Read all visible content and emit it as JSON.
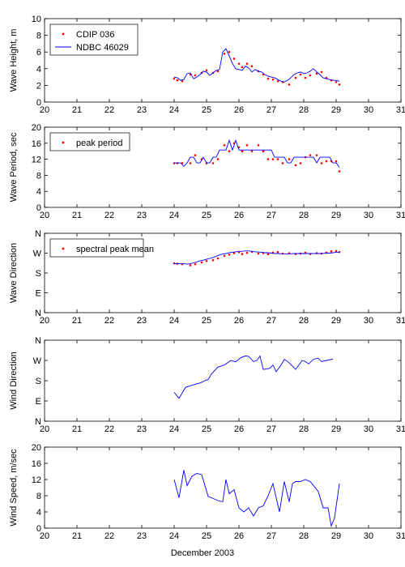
{
  "xaxis_label": "December 2003",
  "colors": {
    "buoy": "#ff0000",
    "model": "#0000ff",
    "axis": "#000000"
  },
  "chart_data": [
    {
      "type": "line",
      "ylabel": "Wave Height, m",
      "xlim": [
        20,
        31
      ],
      "ylim": [
        0,
        10
      ],
      "xticks": [
        "20",
        "21",
        "22",
        "23",
        "24",
        "25",
        "26",
        "27",
        "28",
        "29",
        "30",
        "31"
      ],
      "yticks": [
        "0",
        "2",
        "4",
        "6",
        "8",
        "10"
      ],
      "legend": {
        "placement": "top-left"
      },
      "series": [
        {
          "name": "CDIP 036",
          "style": "dots",
          "color": "#ff0000",
          "x": [
            24.0,
            24.1,
            24.25,
            24.5,
            24.65,
            24.85,
            25.0,
            25.2,
            25.35,
            25.55,
            25.7,
            25.85,
            26.0,
            26.1,
            26.25,
            26.4,
            26.6,
            26.75,
            26.9,
            27.05,
            27.2,
            27.35,
            27.55,
            27.75,
            27.9,
            28.05,
            28.2,
            28.4,
            28.55,
            28.7,
            28.85,
            29.0,
            29.1
          ],
          "y": [
            2.8,
            2.6,
            2.5,
            3.3,
            3.2,
            3.5,
            3.8,
            3.5,
            3.7,
            5.8,
            6.0,
            5.2,
            4.6,
            4.2,
            4.6,
            4.3,
            3.7,
            3.3,
            2.8,
            2.7,
            2.5,
            2.4,
            2.1,
            2.9,
            3.3,
            2.9,
            3.2,
            3.4,
            3.6,
            2.9,
            2.6,
            2.4,
            2.1
          ]
        },
        {
          "name": "NDBC 46029",
          "style": "line",
          "color": "#0000ff",
          "x": [
            24.0,
            24.1,
            24.2,
            24.3,
            24.4,
            24.5,
            24.6,
            24.7,
            24.8,
            24.9,
            25.0,
            25.1,
            25.2,
            25.3,
            25.4,
            25.5,
            25.6,
            25.7,
            25.8,
            25.9,
            26.0,
            26.1,
            26.2,
            26.3,
            26.4,
            26.5,
            26.6,
            26.7,
            26.8,
            26.9,
            27.0,
            27.1,
            27.2,
            27.3,
            27.4,
            27.5,
            27.6,
            27.7,
            27.8,
            27.9,
            28.0,
            28.1,
            28.2,
            28.3,
            28.4,
            28.5,
            28.6,
            28.7,
            28.8,
            28.9,
            29.0,
            29.1
          ],
          "y": [
            3.0,
            2.9,
            2.6,
            2.7,
            3.4,
            3.5,
            2.8,
            3.0,
            3.3,
            3.7,
            3.6,
            3.2,
            3.5,
            3.8,
            3.9,
            6.0,
            6.4,
            5.5,
            4.6,
            4.0,
            3.9,
            3.8,
            4.3,
            4.1,
            3.6,
            3.9,
            3.7,
            3.6,
            3.3,
            3.1,
            3.0,
            2.9,
            2.7,
            2.5,
            2.4,
            2.6,
            2.9,
            3.3,
            3.5,
            3.6,
            3.4,
            3.5,
            3.7,
            4.0,
            3.6,
            3.3,
            2.9,
            2.8,
            2.7,
            2.6,
            2.6,
            2.5
          ]
        }
      ]
    },
    {
      "type": "line",
      "ylabel": "Wave Period, sec",
      "xlim": [
        20,
        31
      ],
      "ylim": [
        0,
        20
      ],
      "xticks": [
        "20",
        "21",
        "22",
        "23",
        "24",
        "25",
        "26",
        "27",
        "28",
        "29",
        "30",
        "31"
      ],
      "yticks": [
        "0",
        "4",
        "8",
        "12",
        "16",
        "20"
      ],
      "legend": {
        "placement": "top-left"
      },
      "series": [
        {
          "name": "peak period",
          "style": "dots",
          "color": "#ff0000",
          "x": [
            24.0,
            24.1,
            24.25,
            24.5,
            24.65,
            24.85,
            25.0,
            25.2,
            25.35,
            25.55,
            25.7,
            25.85,
            26.0,
            26.1,
            26.25,
            26.4,
            26.6,
            26.75,
            26.9,
            27.05,
            27.2,
            27.35,
            27.55,
            27.75,
            27.9,
            28.05,
            28.2,
            28.4,
            28.55,
            28.7,
            28.85,
            29.0,
            29.1
          ],
          "y": [
            11,
            11,
            11,
            11,
            13,
            12,
            11,
            11,
            12,
            15.5,
            14,
            16,
            15,
            14,
            15.5,
            14,
            15.5,
            14,
            12,
            12,
            12,
            11,
            12,
            10.5,
            11,
            12.5,
            13,
            13,
            11,
            11.5,
            11.5,
            11.5,
            9
          ],
          "note": ""
        },
        {
          "name": "",
          "style": "line",
          "color": "#0000ff",
          "x": [
            24.0,
            24.1,
            24.2,
            24.3,
            24.4,
            24.5,
            24.6,
            24.7,
            24.8,
            24.9,
            25.0,
            25.1,
            25.2,
            25.3,
            25.4,
            25.5,
            25.6,
            25.7,
            25.8,
            25.9,
            26.0,
            26.1,
            26.2,
            26.3,
            26.4,
            26.5,
            26.6,
            26.7,
            26.8,
            26.9,
            27.0,
            27.1,
            27.2,
            27.3,
            27.4,
            27.5,
            27.6,
            27.7,
            27.8,
            27.9,
            28.0,
            28.1,
            28.2,
            28.3,
            28.4,
            28.5,
            28.6,
            28.7,
            28.8,
            28.9,
            29.0,
            29.1
          ],
          "y": [
            11.1,
            11.1,
            11.1,
            10.2,
            11.1,
            12.5,
            12.5,
            11.1,
            11.1,
            12.5,
            11.1,
            11.1,
            12.5,
            12.5,
            14.3,
            14.3,
            14.3,
            16.7,
            14.3,
            16.7,
            14.3,
            14.3,
            14.3,
            14.3,
            14.3,
            14.3,
            14.3,
            14.3,
            14.3,
            14.3,
            14.3,
            12.5,
            12.5,
            12.5,
            12.5,
            11.1,
            11.1,
            12.5,
            12.5,
            12.5,
            12.5,
            12.5,
            12.5,
            12.5,
            11.1,
            12.5,
            12.5,
            12.5,
            12.5,
            11.1,
            11.1,
            10.0
          ]
        }
      ]
    },
    {
      "type": "line",
      "ylabel": "Wave Direction",
      "xlim": [
        20,
        31
      ],
      "ylim": [
        0,
        360
      ],
      "xticks": [
        "20",
        "21",
        "22",
        "23",
        "24",
        "25",
        "26",
        "27",
        "28",
        "29",
        "30",
        "31"
      ],
      "yticks": [
        "N",
        "E",
        "S",
        "W",
        "N"
      ],
      "legend": {
        "placement": "top-left"
      },
      "series": [
        {
          "name": "spectral peak mean",
          "style": "dots",
          "color": "#ff0000",
          "x": [
            24.0,
            24.1,
            24.25,
            24.5,
            24.65,
            24.85,
            25.0,
            25.2,
            25.35,
            25.55,
            25.7,
            25.85,
            26.0,
            26.1,
            26.25,
            26.4,
            26.6,
            26.75,
            26.9,
            27.05,
            27.2,
            27.35,
            27.55,
            27.75,
            27.9,
            28.05,
            28.2,
            28.4,
            28.55,
            28.7,
            28.85,
            29.0,
            29.1
          ],
          "y": [
            224,
            222,
            220,
            215,
            220,
            228,
            234,
            238,
            246,
            258,
            263,
            270,
            274,
            266,
            271,
            276,
            268,
            270,
            265,
            272,
            275,
            268,
            270,
            266,
            268,
            272,
            266,
            270,
            268,
            272,
            278,
            280,
            275
          ]
        },
        {
          "name": "",
          "style": "line",
          "color": "#0000ff",
          "x": [
            24.0,
            24.1,
            24.2,
            24.3,
            24.4,
            24.5,
            24.6,
            24.7,
            24.8,
            24.9,
            25.0,
            25.1,
            25.2,
            25.3,
            25.4,
            25.5,
            25.6,
            25.7,
            25.8,
            25.9,
            26.0,
            26.1,
            26.2,
            26.3,
            26.4,
            26.5,
            26.6,
            26.7,
            26.8,
            26.9,
            27.0,
            27.1,
            27.2,
            27.3,
            27.4,
            27.5,
            27.6,
            27.7,
            27.8,
            27.9,
            28.0,
            28.1,
            28.2,
            28.3,
            28.4,
            28.5,
            28.6,
            28.7,
            28.8,
            28.9,
            29.0,
            29.1
          ],
          "y": [
            222,
            222,
            222,
            222,
            220,
            222,
            226,
            230,
            235,
            238,
            242,
            246,
            250,
            256,
            262,
            266,
            268,
            272,
            274,
            276,
            278,
            278,
            280,
            280,
            278,
            276,
            275,
            274,
            272,
            272,
            270,
            268,
            268,
            267,
            266,
            266,
            267,
            268,
            268,
            268,
            268,
            268,
            268,
            268,
            268,
            268,
            269,
            270,
            270,
            272,
            274,
            274
          ]
        }
      ]
    },
    {
      "type": "line",
      "ylabel": "Wind Direction",
      "xlim": [
        20,
        31
      ],
      "ylim": [
        0,
        360
      ],
      "xticks": [
        "20",
        "21",
        "22",
        "23",
        "24",
        "25",
        "26",
        "27",
        "28",
        "29",
        "30",
        "31"
      ],
      "yticks": [
        "N",
        "E",
        "S",
        "W",
        "N"
      ],
      "series": [
        {
          "name": "",
          "style": "line",
          "color": "#0000ff",
          "x": [
            24.0,
            24.15,
            24.35,
            24.55,
            24.8,
            24.95,
            25.05,
            25.15,
            25.35,
            25.55,
            25.75,
            25.9,
            26.05,
            26.2,
            26.3,
            26.45,
            26.55,
            26.65,
            26.75,
            26.85,
            26.95,
            27.05,
            27.15,
            27.3,
            27.4,
            27.55,
            27.65,
            27.75,
            27.95,
            28.05,
            28.15,
            28.3,
            28.45,
            28.55,
            28.7,
            28.9
          ],
          "y": [
            128,
            102,
            150,
            160,
            170,
            180,
            185,
            210,
            240,
            250,
            270,
            264,
            282,
            290,
            288,
            265,
            270,
            290,
            230,
            232,
            235,
            250,
            220,
            250,
            275,
            260,
            245,
            230,
            270,
            265,
            255,
            275,
            280,
            265,
            270,
            276
          ]
        }
      ]
    },
    {
      "type": "line",
      "ylabel": "Wind Speed, m/sec",
      "xlim": [
        20,
        31
      ],
      "ylim": [
        0,
        20
      ],
      "xticks": [
        "20",
        "21",
        "22",
        "23",
        "24",
        "25",
        "26",
        "27",
        "28",
        "29",
        "30",
        "31"
      ],
      "yticks": [
        "0",
        "4",
        "8",
        "12",
        "16",
        "20"
      ],
      "series": [
        {
          "name": "",
          "style": "line",
          "color": "#0000ff",
          "x": [
            24.0,
            24.15,
            24.3,
            24.4,
            24.55,
            24.7,
            24.85,
            25.05,
            25.15,
            25.35,
            25.5,
            25.6,
            25.7,
            25.85,
            26.0,
            26.15,
            26.3,
            26.45,
            26.6,
            26.75,
            26.9,
            27.05,
            27.25,
            27.4,
            27.55,
            27.65,
            27.75,
            27.9,
            28.05,
            28.2,
            28.45,
            28.6,
            28.75,
            28.85,
            28.95,
            29.1
          ],
          "y": [
            12,
            7.5,
            14.3,
            10.5,
            12.8,
            13.5,
            13.2,
            7.8,
            7.5,
            6.8,
            6.5,
            12,
            8.5,
            9.5,
            5,
            4,
            5,
            3,
            5,
            5.5,
            8,
            11,
            4,
            11.5,
            6.5,
            11,
            11.5,
            11.5,
            12,
            11.5,
            9,
            5,
            5,
            0.5,
            2.5,
            11
          ]
        }
      ]
    }
  ]
}
